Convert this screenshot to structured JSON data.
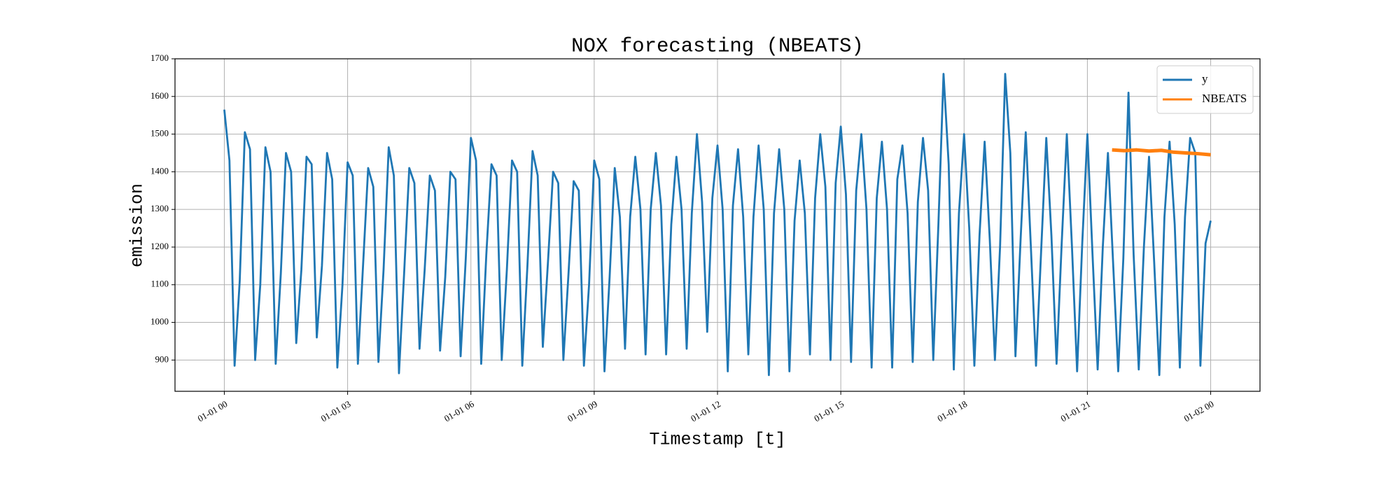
{
  "chart_data": {
    "type": "line",
    "title": "NOX forecasting (NBEATS)",
    "x_label": "Timestamp [t]",
    "y_label": "emission",
    "xlim": [
      -1.2,
      25.2
    ],
    "ylim": [
      817,
      1700
    ],
    "xticks": [
      {
        "value": 0,
        "label": "01-01 00"
      },
      {
        "value": 3,
        "label": "01-01 03"
      },
      {
        "value": 6,
        "label": "01-01 06"
      },
      {
        "value": 9,
        "label": "01-01 09"
      },
      {
        "value": 12,
        "label": "01-01 12"
      },
      {
        "value": 15,
        "label": "01-01 15"
      },
      {
        "value": 18,
        "label": "01-01 18"
      },
      {
        "value": 21,
        "label": "01-01 21"
      },
      {
        "value": 24,
        "label": "01-02 00"
      }
    ],
    "yticks": [
      900,
      1000,
      1100,
      1200,
      1300,
      1400,
      1500,
      1600,
      1700
    ],
    "grid": true,
    "legend": "upper right",
    "series": [
      {
        "name": "y",
        "color": "#1f77b4",
        "x": [
          0,
          0.125,
          0.25,
          0.375,
          0.5,
          0.625,
          0.75,
          0.875,
          1,
          1.125,
          1.25,
          1.375,
          1.5,
          1.625,
          1.75,
          1.875,
          2,
          2.125,
          2.25,
          2.375,
          2.5,
          2.625,
          2.75,
          2.875,
          3,
          3.125,
          3.25,
          3.375,
          3.5,
          3.625,
          3.75,
          3.875,
          4,
          4.125,
          4.25,
          4.375,
          4.5,
          4.625,
          4.75,
          4.875,
          5,
          5.125,
          5.25,
          5.375,
          5.5,
          5.625,
          5.75,
          5.875,
          6,
          6.125,
          6.25,
          6.375,
          6.5,
          6.625,
          6.75,
          6.875,
          7,
          7.125,
          7.25,
          7.375,
          7.5,
          7.625,
          7.75,
          7.875,
          8,
          8.125,
          8.25,
          8.375,
          8.5,
          8.625,
          8.75,
          8.875,
          9,
          9.125,
          9.25,
          9.375,
          9.5,
          9.625,
          9.75,
          9.875,
          10,
          10.125,
          10.25,
          10.375,
          10.5,
          10.625,
          10.75,
          10.875,
          11,
          11.125,
          11.25,
          11.375,
          11.5,
          11.625,
          11.75,
          11.875,
          12,
          12.125,
          12.25,
          12.375,
          12.5,
          12.625,
          12.75,
          12.875,
          13,
          13.125,
          13.25,
          13.375,
          13.5,
          13.625,
          13.75,
          13.875,
          14,
          14.125,
          14.25,
          14.375,
          14.5,
          14.625,
          14.75,
          14.875,
          15,
          15.125,
          15.25,
          15.375,
          15.5,
          15.625,
          15.75,
          15.875,
          16,
          16.125,
          16.25,
          16.375,
          16.5,
          16.625,
          16.75,
          16.875,
          17,
          17.125,
          17.25,
          17.375,
          17.5,
          17.625,
          17.75,
          17.875,
          18,
          18.125,
          18.25,
          18.375,
          18.5,
          18.625,
          18.75,
          18.875,
          19,
          19.125,
          19.25,
          19.375,
          19.5,
          19.625,
          19.75,
          19.875,
          20,
          20.125,
          20.25,
          20.375,
          20.5,
          20.625,
          20.75,
          20.875,
          21,
          21.125,
          21.25,
          21.375,
          21.5,
          21.625,
          21.75,
          21.875,
          22,
          22.125,
          22.25,
          22.375,
          22.5,
          22.625,
          22.75,
          22.875,
          23,
          23.125,
          23.25,
          23.375,
          23.5,
          23.625,
          23.75,
          23.875,
          24
        ],
        "values": [
          1565,
          1430,
          885,
          1110,
          1505,
          1460,
          900,
          1100,
          1465,
          1400,
          890,
          1130,
          1450,
          1400,
          945,
          1140,
          1440,
          1420,
          960,
          1150,
          1450,
          1380,
          880,
          1100,
          1425,
          1390,
          890,
          1150,
          1410,
          1360,
          895,
          1140,
          1465,
          1390,
          865,
          1130,
          1410,
          1370,
          930,
          1140,
          1390,
          1350,
          925,
          1120,
          1400,
          1380,
          910,
          1170,
          1490,
          1430,
          890,
          1180,
          1420,
          1390,
          900,
          1140,
          1430,
          1400,
          885,
          1150,
          1455,
          1390,
          935,
          1160,
          1400,
          1370,
          900,
          1130,
          1375,
          1350,
          885,
          1100,
          1430,
          1380,
          870,
          1120,
          1410,
          1280,
          930,
          1280,
          1440,
          1300,
          915,
          1300,
          1450,
          1310,
          915,
          1260,
          1440,
          1300,
          930,
          1290,
          1500,
          1320,
          975,
          1330,
          1470,
          1300,
          870,
          1310,
          1460,
          1280,
          915,
          1280,
          1470,
          1300,
          860,
          1290,
          1460,
          1300,
          870,
          1270,
          1430,
          1290,
          915,
          1330,
          1500,
          1360,
          900,
          1370,
          1520,
          1340,
          895,
          1350,
          1500,
          1300,
          880,
          1330,
          1480,
          1300,
          880,
          1380,
          1470,
          1290,
          895,
          1320,
          1490,
          1350,
          900,
          1260,
          1660,
          1420,
          875,
          1290,
          1500,
          1250,
          885,
          1230,
          1480,
          1220,
          900,
          1200,
          1660,
          1450,
          910,
          1220,
          1505,
          1200,
          885,
          1190,
          1490,
          1230,
          890,
          1210,
          1500,
          1200,
          870,
          1210,
          1500,
          1180,
          875,
          1200,
          1450,
          1160,
          870,
          1170,
          1610,
          1180,
          875,
          1200,
          1440,
          1160,
          860,
          1280,
          1480,
          1260,
          880,
          1280,
          1490,
          1450,
          885,
          1210,
          1270
        ]
      },
      {
        "name": "NBEATS",
        "color": "#ff7f0e",
        "x": [
          21.6,
          21.9,
          22.2,
          22.5,
          22.8,
          23.1,
          23.4,
          23.7,
          24
        ],
        "values": [
          1458,
          1456,
          1458,
          1455,
          1457,
          1452,
          1450,
          1448,
          1445
        ]
      }
    ]
  }
}
